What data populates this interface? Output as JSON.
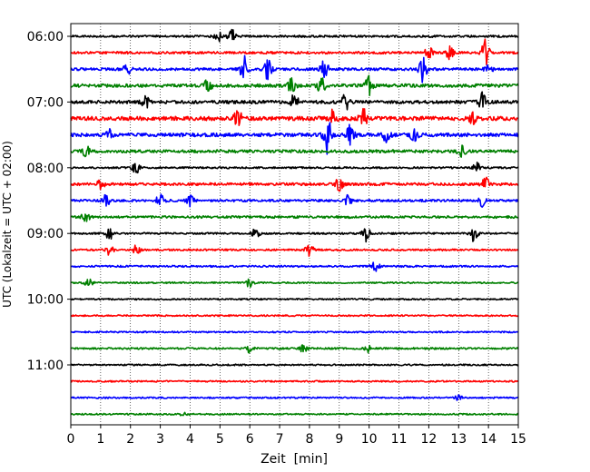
{
  "chart_data": {
    "type": "line",
    "title": "",
    "xlabel": "Zeit  [min]",
    "ylabel": "UTC (Lokalzeit = UTC + 02:00)",
    "xlim": [
      0,
      15
    ],
    "x_ticks": [
      "0",
      "1",
      "2",
      "3",
      "4",
      "5",
      "6",
      "7",
      "8",
      "9",
      "10",
      "11",
      "12",
      "13",
      "14",
      "15"
    ],
    "y_ticks": [
      "06:00",
      "07:00",
      "08:00",
      "09:00",
      "10:00",
      "11:00"
    ],
    "y_tick_rows": [
      0,
      4,
      8,
      12,
      16,
      20
    ],
    "grid": "vertical-dotted",
    "row_interval_min": 15,
    "colors_cycle": [
      "#000000",
      "#ff0000",
      "#0000ff",
      "#008000"
    ],
    "traces": [
      {
        "start": "06:00",
        "amp": 0.35,
        "bursts": [
          [
            4.9,
            1.3
          ],
          [
            5.4,
            1.0
          ]
        ]
      },
      {
        "start": "06:15",
        "amp": 0.4,
        "bursts": [
          [
            12.0,
            1.0
          ],
          [
            12.7,
            1.0
          ],
          [
            13.9,
            2.0
          ]
        ]
      },
      {
        "start": "06:30",
        "amp": 0.45,
        "bursts": [
          [
            1.9,
            1.0
          ],
          [
            5.8,
            2.5
          ],
          [
            6.6,
            2.0
          ],
          [
            8.5,
            1.5
          ],
          [
            11.8,
            2.0
          ],
          [
            14.0,
            0.8
          ]
        ]
      },
      {
        "start": "06:45",
        "amp": 0.55,
        "bursts": [
          [
            4.6,
            1.0
          ],
          [
            7.4,
            1.3
          ],
          [
            8.4,
            1.2
          ],
          [
            10.0,
            1.5
          ]
        ]
      },
      {
        "start": "07:00",
        "amp": 0.55,
        "bursts": [
          [
            2.5,
            1.0
          ],
          [
            7.5,
            1.3
          ],
          [
            9.2,
            1.3
          ],
          [
            13.8,
            1.5
          ]
        ]
      },
      {
        "start": "07:15",
        "amp": 0.7,
        "bursts": [
          [
            5.6,
            1.5
          ],
          [
            8.8,
            1.3
          ],
          [
            9.8,
            1.5
          ],
          [
            13.5,
            1.0
          ]
        ]
      },
      {
        "start": "07:30",
        "amp": 0.6,
        "bursts": [
          [
            1.3,
            0.8
          ],
          [
            8.6,
            3.0
          ],
          [
            9.4,
            2.3
          ],
          [
            10.6,
            1.5
          ],
          [
            11.5,
            1.2
          ]
        ]
      },
      {
        "start": "07:45",
        "amp": 0.5,
        "bursts": [
          [
            0.5,
            0.9
          ],
          [
            13.1,
            0.8
          ]
        ]
      },
      {
        "start": "08:00",
        "amp": 0.3,
        "bursts": [
          [
            2.2,
            1.3
          ],
          [
            13.6,
            0.8
          ]
        ]
      },
      {
        "start": "08:15",
        "amp": 0.45,
        "bursts": [
          [
            1.0,
            0.7
          ],
          [
            9.0,
            1.0
          ],
          [
            13.9,
            1.0
          ]
        ]
      },
      {
        "start": "08:30",
        "amp": 0.4,
        "bursts": [
          [
            1.2,
            1.0
          ],
          [
            3.0,
            1.0
          ],
          [
            4.0,
            0.9
          ],
          [
            9.3,
            0.8
          ],
          [
            13.8,
            0.9
          ]
        ]
      },
      {
        "start": "08:45",
        "amp": 0.4,
        "bursts": [
          [
            0.5,
            0.8
          ]
        ]
      },
      {
        "start": "09:00",
        "amp": 0.3,
        "bursts": [
          [
            1.3,
            1.0
          ],
          [
            6.2,
            0.8
          ],
          [
            9.9,
            1.2
          ],
          [
            13.5,
            1.5
          ]
        ]
      },
      {
        "start": "09:15",
        "amp": 0.3,
        "bursts": [
          [
            1.3,
            0.8
          ],
          [
            2.2,
            0.7
          ],
          [
            8.0,
            1.0
          ]
        ]
      },
      {
        "start": "09:30",
        "amp": 0.3,
        "bursts": [
          [
            10.2,
            1.0
          ]
        ]
      },
      {
        "start": "09:45",
        "amp": 0.25,
        "bursts": [
          [
            0.6,
            0.8
          ],
          [
            6.0,
            0.8
          ]
        ]
      },
      {
        "start": "10:00",
        "amp": 0.25,
        "bursts": []
      },
      {
        "start": "10:15",
        "amp": 0.25,
        "bursts": []
      },
      {
        "start": "10:30",
        "amp": 0.25,
        "bursts": []
      },
      {
        "start": "10:45",
        "amp": 0.3,
        "bursts": [
          [
            6.0,
            0.6
          ],
          [
            7.8,
            0.6
          ],
          [
            10.0,
            0.6
          ]
        ]
      },
      {
        "start": "11:00",
        "amp": 0.25,
        "bursts": []
      },
      {
        "start": "11:15",
        "amp": 0.25,
        "bursts": []
      },
      {
        "start": "11:30",
        "amp": 0.25,
        "bursts": [
          [
            13.0,
            0.4
          ]
        ]
      },
      {
        "start": "11:45",
        "amp": 0.25,
        "bursts": [
          [
            3.8,
            0.4
          ]
        ]
      }
    ]
  }
}
